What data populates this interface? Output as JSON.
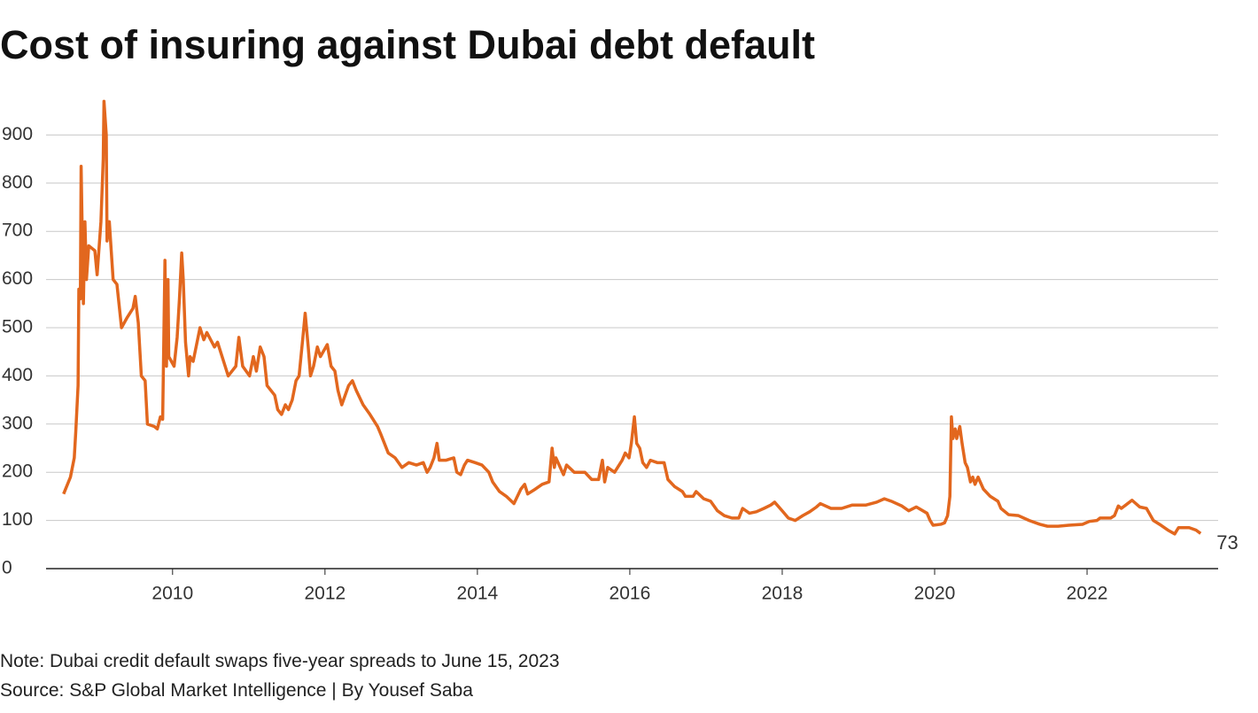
{
  "chart_data": {
    "type": "line",
    "title": "Cost of insuring against Dubai debt default",
    "note": "Note: Dubai credit default swaps five-year spreads to June 15, 2023",
    "source": "Source: S&P Global Market Intelligence | By Yousef Saba",
    "color": "#e2671e",
    "xlim": [
      2008.34,
      2023.72
    ],
    "xticks": [
      2010,
      2012,
      2014,
      2016,
      2018,
      2020,
      2022
    ],
    "ylim": [
      0,
      1000
    ],
    "yticks": [
      0,
      100,
      200,
      300,
      400,
      500,
      600,
      700,
      800,
      900
    ],
    "grid": true,
    "x": [
      2008.57,
      2008.66,
      2008.71,
      2008.73,
      2008.76,
      2008.77,
      2008.79,
      2008.8,
      2008.83,
      2008.85,
      2008.87,
      2008.9,
      2008.98,
      2009.01,
      2009.06,
      2009.09,
      2009.1,
      2009.13,
      2009.14,
      2009.17,
      2009.22,
      2009.27,
      2009.33,
      2009.4,
      2009.48,
      2009.51,
      2009.55,
      2009.59,
      2009.64,
      2009.67,
      2009.76,
      2009.8,
      2009.84,
      2009.87,
      2009.9,
      2009.92,
      2009.94,
      2009.95,
      2010.02,
      2010.06,
      2010.09,
      2010.12,
      2010.14,
      2010.17,
      2010.21,
      2010.23,
      2010.27,
      2010.36,
      2010.41,
      2010.45,
      2010.55,
      2010.59,
      2010.69,
      2010.73,
      2010.83,
      2010.87,
      2010.92,
      2011.01,
      2011.06,
      2011.1,
      2011.15,
      2011.2,
      2011.24,
      2011.34,
      2011.38,
      2011.43,
      2011.48,
      2011.52,
      2011.57,
      2011.62,
      2011.66,
      2011.71,
      2011.74,
      2011.78,
      2011.81,
      2011.85,
      2011.9,
      2011.94,
      2012.03,
      2012.08,
      2012.13,
      2012.17,
      2012.22,
      2012.31,
      2012.36,
      2012.41,
      2012.5,
      2012.59,
      2012.69,
      2012.73,
      2012.83,
      2012.92,
      2013.01,
      2013.1,
      2013.2,
      2013.29,
      2013.34,
      2013.38,
      2013.43,
      2013.47,
      2013.5,
      2013.59,
      2013.69,
      2013.73,
      2013.78,
      2013.83,
      2013.87,
      2013.97,
      2014.06,
      2014.15,
      2014.2,
      2014.29,
      2014.38,
      2014.48,
      2014.57,
      2014.62,
      2014.66,
      2014.76,
      2014.85,
      2014.94,
      2014.98,
      2015.01,
      2015.03,
      2015.13,
      2015.17,
      2015.27,
      2015.41,
      2015.5,
      2015.59,
      2015.64,
      2015.67,
      2015.71,
      2015.8,
      2015.9,
      2015.94,
      2015.99,
      2016.02,
      2016.06,
      2016.09,
      2016.13,
      2016.17,
      2016.22,
      2016.27,
      2016.36,
      2016.45,
      2016.5,
      2016.59,
      2016.69,
      2016.73,
      2016.83,
      2016.87,
      2016.97,
      2017.06,
      2017.15,
      2017.24,
      2017.34,
      2017.43,
      2017.48,
      2017.57,
      2017.66,
      2017.76,
      2017.85,
      2017.9,
      2018.0,
      2018.08,
      2018.17,
      2018.27,
      2018.36,
      2018.45,
      2018.5,
      2018.64,
      2018.78,
      2018.92,
      2019.1,
      2019.24,
      2019.34,
      2019.43,
      2019.57,
      2019.66,
      2019.76,
      2019.9,
      2019.94,
      2019.98,
      2020.08,
      2020.13,
      2020.17,
      2020.2,
      2020.22,
      2020.24,
      2020.27,
      2020.29,
      2020.33,
      2020.36,
      2020.4,
      2020.43,
      2020.47,
      2020.5,
      2020.53,
      2020.57,
      2020.64,
      2020.73,
      2020.83,
      2020.87,
      2020.97,
      2021.1,
      2021.24,
      2021.38,
      2021.48,
      2021.62,
      2021.76,
      2021.94,
      2022.03,
      2022.13,
      2022.17,
      2022.31,
      2022.36,
      2022.41,
      2022.45,
      2022.59,
      2022.69,
      2022.78,
      2022.87,
      2022.97,
      2023.06,
      2023.15,
      2023.2,
      2023.34,
      2023.43,
      2023.49
    ],
    "values": [
      155,
      190,
      230,
      285,
      380,
      580,
      560,
      835,
      550,
      720,
      600,
      670,
      660,
      610,
      720,
      850,
      970,
      900,
      680,
      720,
      600,
      590,
      500,
      520,
      540,
      565,
      510,
      400,
      390,
      300,
      295,
      290,
      315,
      310,
      640,
      420,
      600,
      440,
      420,
      480,
      560,
      655,
      600,
      470,
      400,
      440,
      430,
      500,
      475,
      490,
      460,
      470,
      420,
      400,
      420,
      480,
      420,
      400,
      440,
      410,
      460,
      440,
      380,
      360,
      330,
      320,
      340,
      330,
      350,
      390,
      400,
      480,
      530,
      460,
      400,
      420,
      460,
      440,
      465,
      420,
      410,
      370,
      340,
      380,
      390,
      370,
      340,
      320,
      295,
      280,
      240,
      230,
      210,
      220,
      215,
      220,
      200,
      210,
      230,
      260,
      225,
      225,
      230,
      200,
      195,
      215,
      225,
      220,
      215,
      200,
      180,
      160,
      150,
      135,
      165,
      175,
      155,
      165,
      175,
      180,
      250,
      210,
      230,
      195,
      215,
      200,
      200,
      185,
      185,
      225,
      180,
      210,
      200,
      225,
      240,
      230,
      260,
      315,
      260,
      250,
      220,
      210,
      225,
      220,
      220,
      185,
      170,
      160,
      150,
      150,
      160,
      145,
      140,
      120,
      110,
      105,
      105,
      125,
      115,
      118,
      125,
      132,
      138,
      120,
      105,
      100,
      110,
      118,
      128,
      135,
      125,
      125,
      132,
      132,
      138,
      145,
      140,
      130,
      120,
      128,
      115,
      100,
      90,
      92,
      95,
      110,
      150,
      315,
      270,
      290,
      270,
      295,
      260,
      220,
      210,
      180,
      190,
      175,
      190,
      165,
      150,
      140,
      125,
      112,
      110,
      100,
      92,
      88,
      88,
      90,
      92,
      98,
      100,
      105,
      105,
      110,
      130,
      125,
      142,
      128,
      125,
      100,
      90,
      80,
      72,
      85,
      85,
      80,
      73
    ]
  }
}
